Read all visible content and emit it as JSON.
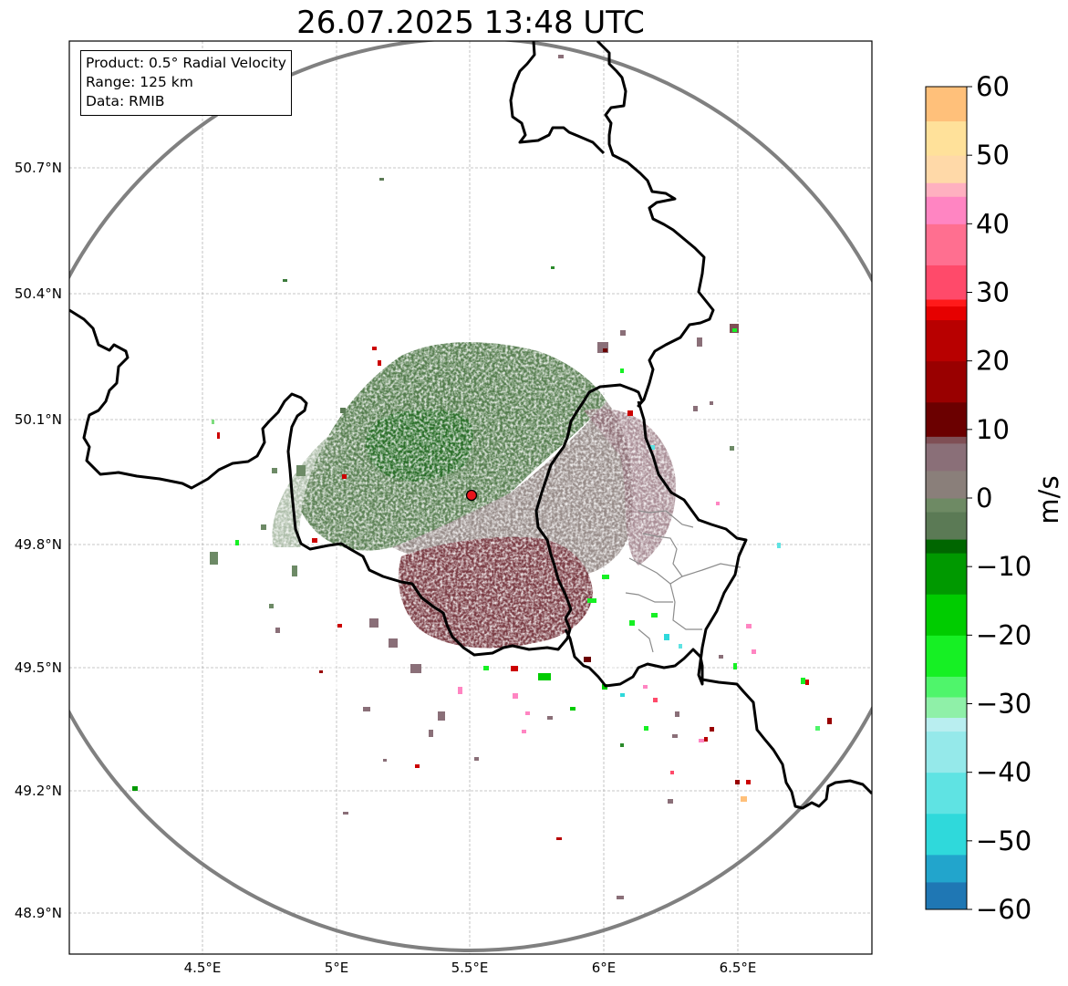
{
  "title": "26.07.2025 13:48 UTC",
  "info": {
    "product": "Product: 0.5° Radial Velocity",
    "range": "Range: 125 km",
    "data": "Data: RMIB"
  },
  "axes": {
    "lat_ticks": [
      "50.7°N",
      "50.4°N",
      "50.1°N",
      "49.8°N",
      "49.5°N",
      "49.2°N",
      "48.9°N"
    ],
    "lon_ticks": [
      "4.5°E",
      "5°E",
      "5.5°E",
      "6°E",
      "6.5°E"
    ],
    "lon_range": [
      4.0,
      7.0
    ],
    "lat_range": [
      48.8,
      51.0
    ]
  },
  "radar_site": {
    "lon": 5.5,
    "lat": 49.915
  },
  "colorbar": {
    "unit": "m/s",
    "ticks": [
      "60",
      "50",
      "40",
      "30",
      "20",
      "10",
      "0",
      "−10",
      "−20",
      "−30",
      "−40",
      "−50",
      "−60"
    ],
    "range": [
      -60,
      60
    ],
    "stops": [
      {
        "v": -60,
        "c": "#1f77b4"
      },
      {
        "v": -56,
        "c": "#22a5cc"
      },
      {
        "v": -52,
        "c": "#2fd9db"
      },
      {
        "v": -46,
        "c": "#5fe3e3"
      },
      {
        "v": -40,
        "c": "#95e9ea"
      },
      {
        "v": -34,
        "c": "#b9eef0"
      },
      {
        "v": -32,
        "c": "#8ff0a8"
      },
      {
        "v": -29,
        "c": "#4ff56b"
      },
      {
        "v": -26,
        "c": "#16f024"
      },
      {
        "v": -20,
        "c": "#00cc00"
      },
      {
        "v": -14,
        "c": "#009900"
      },
      {
        "v": -8,
        "c": "#006600"
      },
      {
        "v": -6,
        "c": "#5b7a55"
      },
      {
        "v": -2,
        "c": "#6e8a64"
      },
      {
        "v": 0,
        "c": "#8a7f7a"
      },
      {
        "v": 4,
        "c": "#8a6f78"
      },
      {
        "v": 8,
        "c": "#7f4f55"
      },
      {
        "v": 9,
        "c": "#6b0000"
      },
      {
        "v": 14,
        "c": "#990000"
      },
      {
        "v": 20,
        "c": "#b80000"
      },
      {
        "v": 26,
        "c": "#e60000"
      },
      {
        "v": 28,
        "c": "#ff1a1a"
      },
      {
        "v": 29,
        "c": "#ff4a6a"
      },
      {
        "v": 34,
        "c": "#ff6f90"
      },
      {
        "v": 40,
        "c": "#ff85c2"
      },
      {
        "v": 44,
        "c": "#ffb0c0"
      },
      {
        "v": 46,
        "c": "#ffd9a8"
      },
      {
        "v": 50,
        "c": "#ffe19a"
      },
      {
        "v": 55,
        "c": "#ffc07a"
      },
      {
        "v": 60,
        "c": "#ff9c55"
      }
    ]
  }
}
